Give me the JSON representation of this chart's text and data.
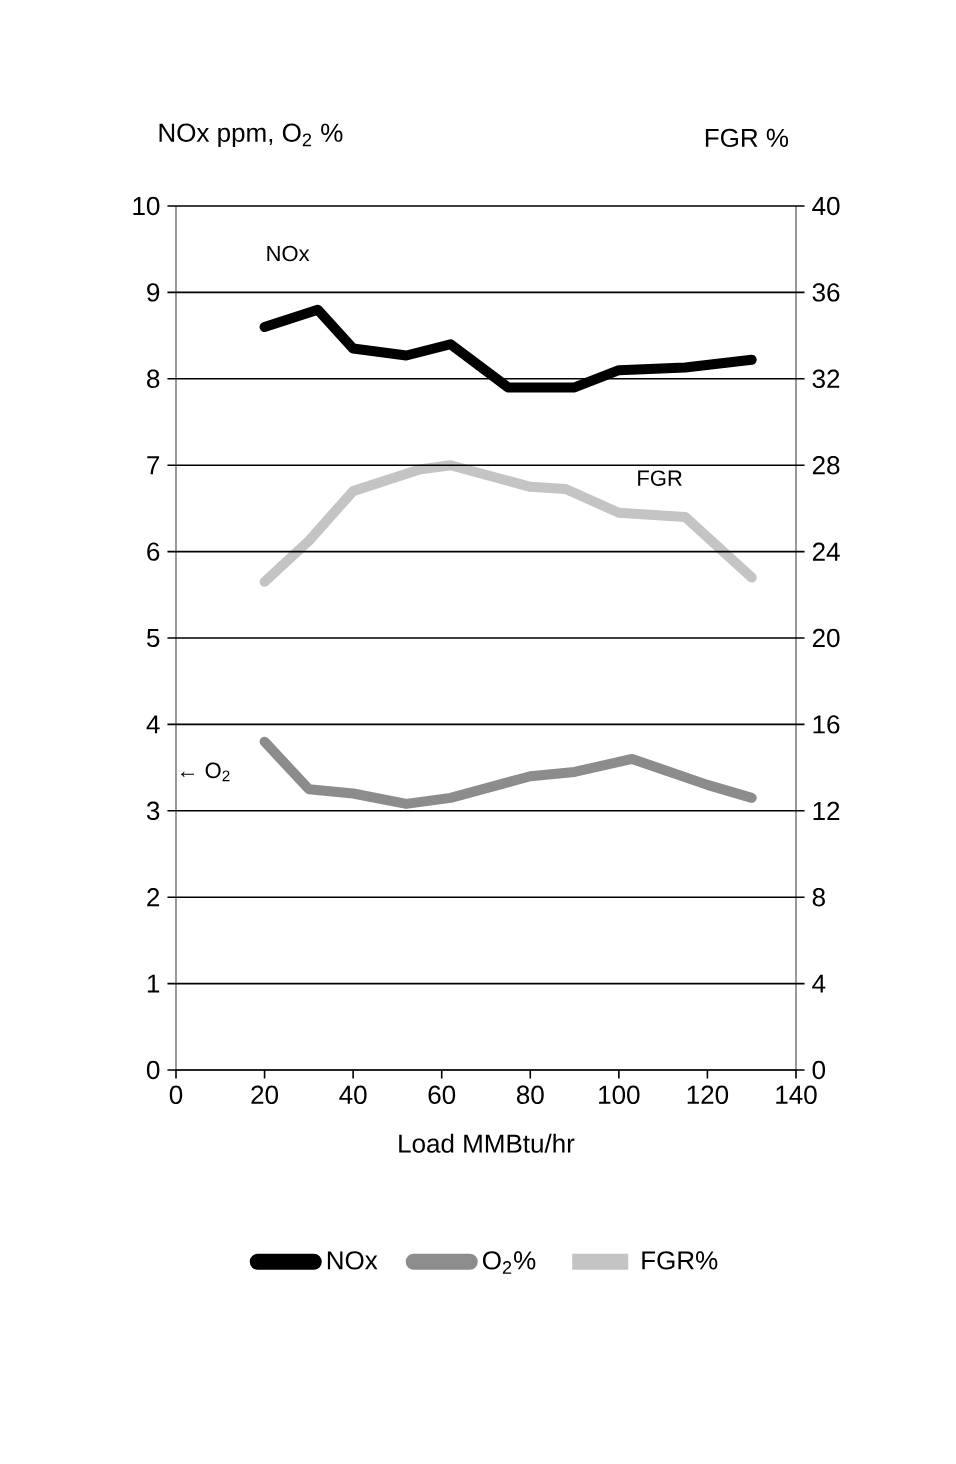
{
  "chart_data": {
    "type": "line",
    "ylabel": "NOx ppm, O$_{2}$ %",
    "y2label": "FGR %",
    "xlabel": "Load MMBtu/hr",
    "xlim": [
      0,
      140
    ],
    "xticks": [
      0,
      20,
      40,
      60,
      80,
      100,
      120,
      140
    ],
    "ylim": [
      0,
      10
    ],
    "yticks": [
      0,
      1,
      2,
      3,
      4,
      5,
      6,
      7,
      8,
      9,
      10
    ],
    "y2lim": [
      0,
      40
    ],
    "y2ticks": [
      0,
      4,
      8,
      12,
      16,
      20,
      24,
      28,
      32,
      36,
      40
    ],
    "grid": "y",
    "legend": "bottom",
    "marker": "none",
    "line_style": "solid",
    "annotations": [
      "NOx",
      "FGR",
      "← O$_{2}$"
    ],
    "series": [
      {
        "name": "NOx",
        "color": "#000000",
        "x": [
          20,
          32,
          40,
          52,
          62,
          75,
          90,
          100,
          115,
          130
        ],
        "values": [
          8.6,
          8.8,
          8.35,
          8.27,
          8.4,
          7.9,
          7.9,
          8.1,
          8.13,
          8.22
        ]
      },
      {
        "name": "O$_{2}$%",
        "color": "#8c8c8c",
        "x": [
          20,
          30,
          40,
          52,
          62,
          80,
          90,
          103,
          120,
          130
        ],
        "values": [
          3.8,
          3.25,
          3.2,
          3.08,
          3.15,
          3.4,
          3.45,
          3.6,
          3.3,
          3.15
        ]
      },
      {
        "name": "FGR%",
        "color": "#c4c4c4",
        "axis": "y2",
        "x": [
          20,
          30,
          40,
          55,
          62,
          80,
          88,
          100,
          115,
          130
        ],
        "values": [
          22.6,
          24.5,
          26.8,
          27.8,
          28,
          27,
          26.9,
          25.8,
          25.6,
          22.8
        ]
      }
    ]
  }
}
